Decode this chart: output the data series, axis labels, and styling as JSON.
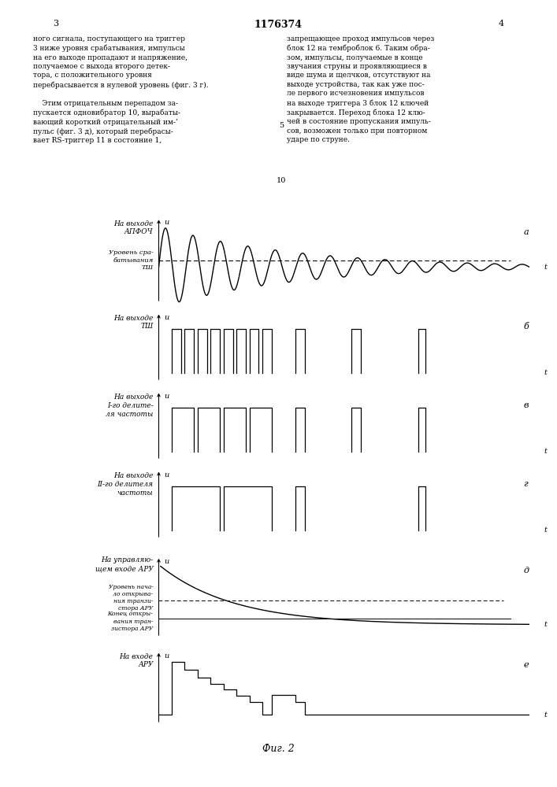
{
  "title": "Фиг. 2",
  "panel_a_label_line1": "На выходе",
  "panel_a_label_line2": "АПФОЧ",
  "panel_a_sublabel": "Уровень сра-\nбатывания\nТШ",
  "panel_b_label_line1": "На выходе",
  "panel_b_label_line2": "ТШ",
  "panel_c_label_line1": "На выходе",
  "panel_c_label_line2": "I-го делите-",
  "panel_c_label_line3": "ля частоты",
  "panel_d_label_line1": "На выходе",
  "panel_d_label_line2": "II-го делителя",
  "panel_d_label_line3": "частоты",
  "panel_e_label_line1": "На управляю-",
  "panel_e_label_line2": "щем входе АРУ",
  "panel_e_thresh1_line1": "Уровень нача-",
  "panel_e_thresh1_line2": "ло открыва-",
  "panel_e_thresh1_line3": "ния транзи-",
  "panel_e_thresh1_line4": "стора АРУ",
  "panel_e_thresh2_line1": "Конец откры-",
  "panel_e_thresh2_line2": "вания тран-",
  "panel_e_thresh2_line3": "зистора АРУ",
  "panel_f_label_line1": "На входе",
  "panel_f_label_line2": "АРУ",
  "background": "#ffffff",
  "text_color": "#000000",
  "page_num_left": "3",
  "page_num_right": "4",
  "patent_num": "1176374"
}
